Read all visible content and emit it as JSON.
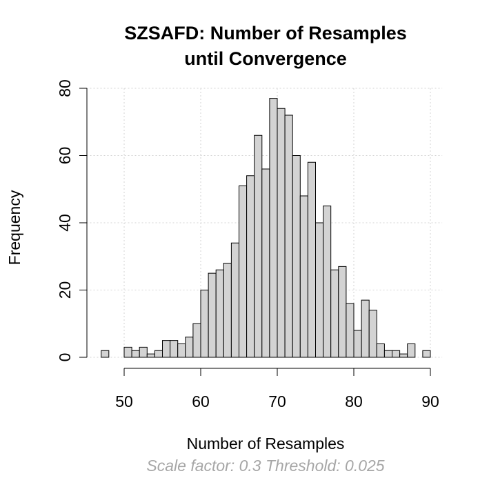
{
  "chart_data": {
    "type": "histogram",
    "title": [
      "SZSAFD: Number of Resamples",
      "until Convergence"
    ],
    "xlabel": "Number of Resamples",
    "ylabel": "Frequency",
    "subtitle": "Scale factor: 0.3 Threshold: 0.025",
    "xlim": [
      45,
      91
    ],
    "ylim": [
      0,
      80
    ],
    "xticks": [
      50,
      60,
      70,
      80,
      90
    ],
    "yticks": [
      0,
      20,
      40,
      60,
      80
    ],
    "grid": true,
    "bin_width": 1,
    "bins": [
      {
        "start": 47,
        "count": 2
      },
      {
        "start": 50,
        "count": 3
      },
      {
        "start": 51,
        "count": 2
      },
      {
        "start": 52,
        "count": 3
      },
      {
        "start": 53,
        "count": 1
      },
      {
        "start": 54,
        "count": 2
      },
      {
        "start": 55,
        "count": 5
      },
      {
        "start": 56,
        "count": 5
      },
      {
        "start": 57,
        "count": 4
      },
      {
        "start": 58,
        "count": 6
      },
      {
        "start": 59,
        "count": 10
      },
      {
        "start": 60,
        "count": 20
      },
      {
        "start": 61,
        "count": 25
      },
      {
        "start": 62,
        "count": 26
      },
      {
        "start": 63,
        "count": 28
      },
      {
        "start": 64,
        "count": 34
      },
      {
        "start": 65,
        "count": 51
      },
      {
        "start": 66,
        "count": 54
      },
      {
        "start": 67,
        "count": 66
      },
      {
        "start": 68,
        "count": 56
      },
      {
        "start": 69,
        "count": 77
      },
      {
        "start": 70,
        "count": 74
      },
      {
        "start": 71,
        "count": 72
      },
      {
        "start": 72,
        "count": 60
      },
      {
        "start": 73,
        "count": 48
      },
      {
        "start": 74,
        "count": 58
      },
      {
        "start": 75,
        "count": 40
      },
      {
        "start": 76,
        "count": 45
      },
      {
        "start": 77,
        "count": 26
      },
      {
        "start": 78,
        "count": 27
      },
      {
        "start": 79,
        "count": 16
      },
      {
        "start": 80,
        "count": 8
      },
      {
        "start": 81,
        "count": 17
      },
      {
        "start": 82,
        "count": 14
      },
      {
        "start": 83,
        "count": 4
      },
      {
        "start": 84,
        "count": 2
      },
      {
        "start": 85,
        "count": 2
      },
      {
        "start": 86,
        "count": 1
      },
      {
        "start": 87,
        "count": 4
      },
      {
        "start": 89,
        "count": 2
      }
    ]
  }
}
